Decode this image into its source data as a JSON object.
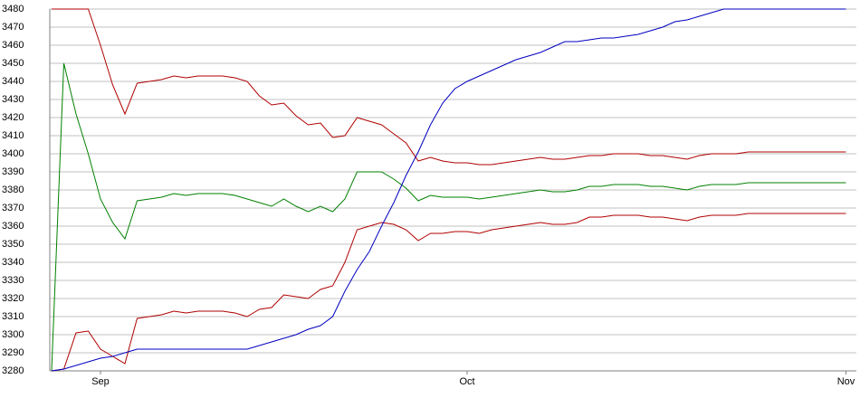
{
  "chart_data": {
    "type": "line",
    "categories": [
      null,
      null,
      null,
      null,
      "Sep",
      null,
      null,
      null,
      null,
      null,
      null,
      null,
      null,
      null,
      null,
      null,
      null,
      null,
      null,
      null,
      null,
      null,
      null,
      null,
      null,
      null,
      null,
      null,
      null,
      null,
      null,
      null,
      null,
      null,
      "Oct",
      null,
      null,
      null,
      null,
      null,
      null,
      null,
      null,
      null,
      null,
      null,
      null,
      null,
      null,
      null,
      null,
      null,
      null,
      null,
      null,
      null,
      null,
      null,
      null,
      null,
      null,
      null,
      null,
      null,
      null,
      "Nov"
    ],
    "series": [
      {
        "color": "#b00000",
        "values": [
          3480,
          3480,
          3480,
          3480,
          3460,
          3438,
          3422,
          3439,
          3440,
          3441,
          3443,
          3442,
          3443,
          3443,
          3443,
          3442,
          3440,
          3432,
          3427,
          3428,
          3421,
          3416,
          3417,
          3409,
          3410,
          3420,
          3418,
          3416,
          3411,
          3406,
          3396,
          3398,
          3396,
          3395,
          3395,
          3394,
          3394,
          3395,
          3396,
          3397,
          3398,
          3397,
          3397,
          3398,
          3399,
          3399,
          3400,
          3400,
          3400,
          3399,
          3399,
          3398,
          3397,
          3399,
          3400,
          3400,
          3400,
          3401,
          3401,
          3401,
          3401,
          3401,
          3401,
          3401,
          3401,
          3401
        ]
      },
      {
        "color": "#008000",
        "values": [
          3280,
          3450,
          3422,
          3400,
          3375,
          3362,
          3353,
          3374,
          3375,
          3376,
          3378,
          3377,
          3378,
          3378,
          3378,
          3377,
          3375,
          3373,
          3371,
          3375,
          3371,
          3368,
          3371,
          3368,
          3375,
          3390,
          3390,
          3390,
          3386,
          3381,
          3374,
          3377,
          3376,
          3376,
          3376,
          3375,
          3376,
          3377,
          3378,
          3379,
          3380,
          3379,
          3379,
          3380,
          3382,
          3382,
          3383,
          3383,
          3383,
          3382,
          3382,
          3381,
          3380,
          3382,
          3383,
          3383,
          3383,
          3384,
          3384,
          3384,
          3384,
          3384,
          3384,
          3384,
          3384,
          3384
        ]
      },
      {
        "color": "#b00000",
        "values": [
          3280,
          3281,
          3301,
          3302,
          3292,
          3288,
          3284,
          3309,
          3310,
          3311,
          3313,
          3312,
          3313,
          3313,
          3313,
          3312,
          3310,
          3314,
          3315,
          3322,
          3321,
          3320,
          3325,
          3327,
          3340,
          3358,
          3360,
          3362,
          3361,
          3358,
          3352,
          3356,
          3356,
          3357,
          3357,
          3356,
          3358,
          3359,
          3360,
          3361,
          3362,
          3361,
          3361,
          3362,
          3365,
          3365,
          3366,
          3366,
          3366,
          3365,
          3365,
          3364,
          3363,
          3365,
          3366,
          3366,
          3366,
          3367,
          3367,
          3367,
          3367,
          3367,
          3367,
          3367,
          3367,
          3367
        ]
      },
      {
        "color": "#0000c0",
        "values": [
          3280,
          3281,
          3283,
          3285,
          3287,
          3288,
          3290,
          3292,
          3292,
          3292,
          3292,
          3292,
          3292,
          3292,
          3292,
          3292,
          3292,
          3294,
          3296,
          3298,
          3300,
          3303,
          3305,
          3310,
          3324,
          3336,
          3346,
          3360,
          3373,
          3388,
          3401,
          3416,
          3428,
          3436,
          3440,
          3443,
          3446,
          3449,
          3452,
          3454,
          3456,
          3459,
          3462,
          3462,
          3463,
          3464,
          3464,
          3465,
          3466,
          3468,
          3470,
          3473,
          3474,
          3476,
          3478,
          3480,
          3480,
          3480,
          3480,
          3480,
          3480,
          3480,
          3480,
          3480,
          3480,
          3480
        ]
      }
    ],
    "ylim": [
      3280,
      3480
    ],
    "yticks": [
      3280,
      3290,
      3300,
      3310,
      3320,
      3330,
      3340,
      3350,
      3360,
      3370,
      3380,
      3390,
      3400,
      3410,
      3420,
      3430,
      3440,
      3450,
      3460,
      3470,
      3480
    ],
    "grid": true
  }
}
